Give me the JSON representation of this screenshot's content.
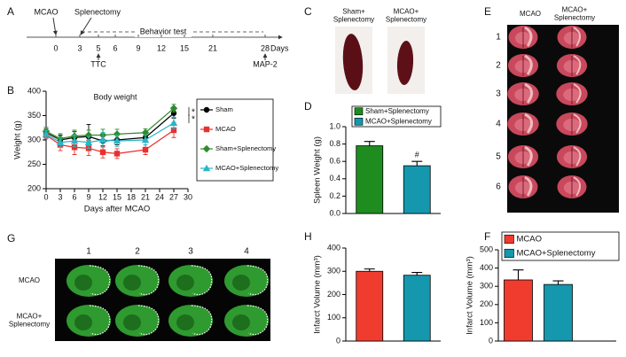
{
  "panels": [
    "A",
    "B",
    "C",
    "D",
    "E",
    "F",
    "G",
    "H"
  ],
  "timeline": {
    "events_top": [
      "MCAO",
      "Splenectomy"
    ],
    "phase": "Behavior test",
    "days": [
      0,
      3,
      5,
      6,
      9,
      12,
      15,
      21,
      28
    ],
    "unit": "Days",
    "events_bottom": [
      "TTC",
      "MAP-2"
    ]
  },
  "spleen_photo": {
    "labels": [
      [
        "Sham+",
        "Splenectomy"
      ],
      [
        "MCAO+",
        "Splenectomy"
      ]
    ]
  },
  "ttc_photo": {
    "columns": [
      [
        "MCAO"
      ],
      [
        "MCAO+",
        "Splenectomy"
      ]
    ],
    "rows": [
      1,
      2,
      3,
      4,
      5,
      6
    ]
  },
  "map2_photo": {
    "columns": [
      1,
      2,
      3,
      4
    ],
    "rows": [
      [
        "MCAO"
      ],
      [
        "MCAO+",
        "Splenectomy"
      ]
    ]
  },
  "chart_data": [
    {
      "type": "line",
      "title": "Body weight",
      "x_label": "Days after MCAO",
      "y_label": "Weight (g)",
      "x": [
        0,
        3,
        6,
        9,
        12,
        15,
        21,
        27
      ],
      "xlim": [
        0,
        30
      ],
      "xticks": [
        0,
        3,
        6,
        9,
        12,
        15,
        18,
        21,
        24,
        27,
        30
      ],
      "ylim": [
        200,
        400
      ],
      "yticks": [
        200,
        250,
        300,
        350,
        400
      ],
      "legend": "outside right",
      "annotations": [
        "*",
        "*"
      ],
      "series": [
        {
          "name": "Sham",
          "color": "#000000",
          "marker": "circle",
          "values": [
            315,
            300,
            305,
            307,
            298,
            300,
            305,
            355
          ],
          "errors": [
            8,
            10,
            12,
            25,
            10,
            10,
            8,
            10
          ]
        },
        {
          "name": "MCAO",
          "color": "#e8312f",
          "marker": "square",
          "values": [
            310,
            290,
            285,
            283,
            275,
            272,
            280,
            320
          ],
          "errors": [
            8,
            12,
            15,
            15,
            12,
            10,
            10,
            15
          ]
        },
        {
          "name": "Sham+Splenectomy",
          "color": "#2e8b2e",
          "marker": "diamond",
          "values": [
            318,
            303,
            308,
            310,
            310,
            312,
            315,
            365
          ],
          "errors": [
            8,
            10,
            12,
            10,
            12,
            10,
            8,
            8
          ]
        },
        {
          "name": "MCAO+Splenectomy",
          "color": "#2bb5c8",
          "marker": "triangle",
          "values": [
            312,
            295,
            298,
            295,
            300,
            298,
            300,
            335
          ],
          "errors": [
            8,
            10,
            12,
            12,
            15,
            12,
            10,
            12
          ]
        }
      ]
    },
    {
      "type": "bar",
      "y_label": "Spleen Weight (g)",
      "ylim": [
        0,
        1.0
      ],
      "yticks": [
        {
          "value": 0,
          "label": "0.0"
        },
        0.2,
        0.4,
        0.6,
        0.8,
        {
          "value": 1,
          "label": "1.0"
        }
      ],
      "legend": "top",
      "annotations": [
        "#"
      ],
      "series": [
        {
          "name": "Sham+Splenectomy",
          "color": "#1e8c1e",
          "values": [
            0.78
          ],
          "errors": [
            0.05
          ]
        },
        {
          "name": "MCAO+Splenectomy",
          "color": "#1597ad",
          "values": [
            0.55
          ],
          "errors": [
            0.05
          ]
        }
      ]
    },
    {
      "type": "bar",
      "y_label": "Infarct Volume (mm³)",
      "ylim": [
        0,
        500
      ],
      "yticks": [
        0,
        100,
        200,
        300,
        400,
        500
      ],
      "legend": "top",
      "series": [
        {
          "name": "MCAO",
          "color": "#f03c2e",
          "values": [
            335
          ],
          "errors": [
            55
          ]
        },
        {
          "name": "MCAO+Splenectomy",
          "color": "#1597ad",
          "values": [
            310
          ],
          "errors": [
            20
          ]
        }
      ]
    },
    {
      "type": "bar",
      "y_label": "Infarct Volume (mm³)",
      "ylim": [
        0,
        400
      ],
      "yticks": [
        0,
        100,
        200,
        300,
        400
      ],
      "values": [
        300,
        283
      ],
      "errors": [
        10,
        12
      ],
      "colors": [
        "#f03c2e",
        "#1597ad"
      ]
    }
  ]
}
